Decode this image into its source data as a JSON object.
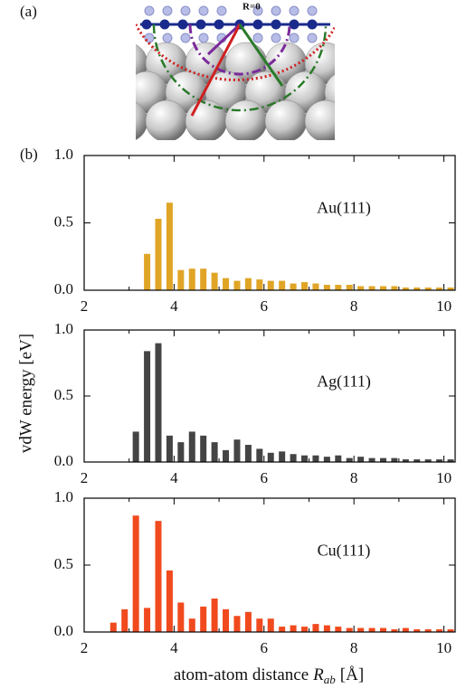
{
  "panel_labels": [
    "(a)",
    "(b)"
  ],
  "image_label": "R=0",
  "chart_data": [
    {
      "type": "bar",
      "label": "Au(111)",
      "color": "#e0a526",
      "ylabel": "vdW energy [eV]",
      "x": [
        3.4,
        3.65,
        3.9,
        4.15,
        4.4,
        4.65,
        4.9,
        5.15,
        5.4,
        5.65,
        5.9,
        6.15,
        6.4,
        6.65,
        6.9,
        7.15,
        7.4,
        7.65,
        7.9,
        8.15,
        8.4,
        8.65,
        8.9,
        9.15,
        9.4,
        9.65,
        9.9,
        10.15
      ],
      "values": [
        0.27,
        0.53,
        0.65,
        0.15,
        0.16,
        0.16,
        0.13,
        0.09,
        0.07,
        0.09,
        0.08,
        0.07,
        0.07,
        0.05,
        0.06,
        0.05,
        0.04,
        0.04,
        0.04,
        0.03,
        0.03,
        0.03,
        0.03,
        0.02,
        0.02,
        0.02,
        0.02,
        0.02
      ],
      "xlim": [
        2,
        10.25
      ],
      "ylim": [
        0,
        1
      ],
      "xticks": [
        2,
        4,
        6,
        8,
        10
      ],
      "xminorticks": [
        3,
        5,
        7,
        9
      ],
      "yticks": [
        {
          "value": 0,
          "label": "0.0"
        },
        {
          "value": 0.5,
          "label": "0.5"
        },
        {
          "value": 1,
          "label": "1.0"
        }
      ]
    },
    {
      "type": "bar",
      "label": "Ag(111)",
      "color": "#444444",
      "x": [
        3.15,
        3.4,
        3.65,
        3.9,
        4.15,
        4.4,
        4.65,
        4.9,
        5.15,
        5.4,
        5.65,
        5.9,
        6.15,
        6.4,
        6.65,
        6.9,
        7.15,
        7.4,
        7.65,
        7.9,
        8.15,
        8.4,
        8.65,
        8.9,
        9.15,
        9.4,
        9.65,
        9.9,
        10.15
      ],
      "values": [
        0.23,
        0.84,
        0.9,
        0.2,
        0.15,
        0.23,
        0.2,
        0.15,
        0.09,
        0.17,
        0.13,
        0.1,
        0.07,
        0.08,
        0.06,
        0.05,
        0.05,
        0.04,
        0.05,
        0.03,
        0.04,
        0.03,
        0.03,
        0.03,
        0.02,
        0.02,
        0.02,
        0.02,
        0.02
      ],
      "xlim": [
        2,
        10.25
      ],
      "ylim": [
        0,
        1
      ],
      "xticks": [
        2,
        4,
        6,
        8,
        10
      ],
      "xminorticks": [
        3,
        5,
        7,
        9
      ],
      "yticks": [
        {
          "value": 0,
          "label": "0.0"
        },
        {
          "value": 0.5,
          "label": "0.5"
        },
        {
          "value": 1,
          "label": "1.0"
        }
      ]
    },
    {
      "type": "bar",
      "label": "Cu(111)",
      "color": "#f04a1e",
      "xlabel": {
        "text": "atom-atom distance",
        "var": "R",
        "sub": "ab",
        "unit": "[Å]"
      },
      "x": [
        2.65,
        2.9,
        3.15,
        3.4,
        3.65,
        3.9,
        4.15,
        4.4,
        4.65,
        4.9,
        5.15,
        5.4,
        5.65,
        5.9,
        6.15,
        6.4,
        6.65,
        6.9,
        7.15,
        7.4,
        7.65,
        7.9,
        8.15,
        8.4,
        8.65,
        8.9,
        9.15,
        9.4,
        9.65,
        9.9,
        10.15
      ],
      "values": [
        0.07,
        0.17,
        0.87,
        0.18,
        0.83,
        0.46,
        0.22,
        0.1,
        0.19,
        0.25,
        0.17,
        0.12,
        0.15,
        0.1,
        0.1,
        0.04,
        0.05,
        0.04,
        0.06,
        0.05,
        0.04,
        0.03,
        0.03,
        0.03,
        0.03,
        0.02,
        0.03,
        0.02,
        0.02,
        0.02,
        0.02
      ],
      "xlim": [
        2,
        10.25
      ],
      "ylim": [
        0,
        1
      ],
      "xticks": [
        2,
        4,
        6,
        8,
        10
      ],
      "xminorticks": [
        3,
        5,
        7,
        9
      ],
      "yticks": [
        {
          "value": 0,
          "label": "0.0"
        },
        {
          "value": 0.5,
          "label": "0.5"
        },
        {
          "value": 1,
          "label": "1.0"
        }
      ]
    }
  ]
}
